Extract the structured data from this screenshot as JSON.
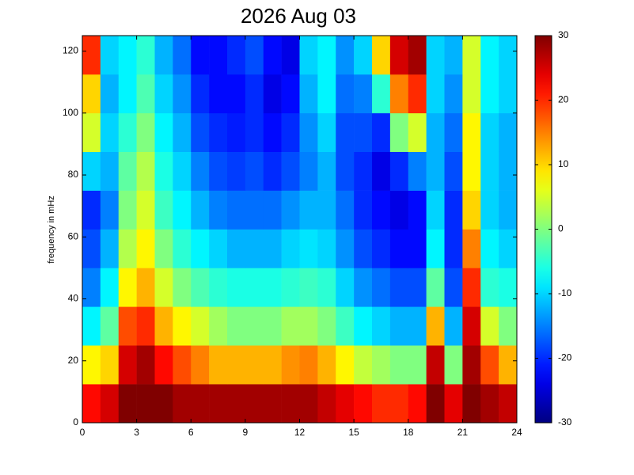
{
  "chart_data": {
    "type": "heatmap",
    "title": "2026 Aug 03",
    "y_label": "frequency in mHz",
    "xbins": [
      0,
      1,
      2,
      3,
      4,
      5,
      6,
      7,
      8,
      9,
      10,
      11,
      12,
      13,
      14,
      15,
      16,
      17,
      18,
      19,
      20,
      21,
      22,
      23,
      24
    ],
    "ybins": [
      0,
      12.5,
      25,
      37.5,
      50,
      62.5,
      75,
      87.5,
      100,
      112.5,
      125
    ],
    "values": [
      [
        22,
        25,
        30,
        30,
        30,
        28,
        28,
        28,
        28,
        28,
        28,
        28,
        28,
        26,
        24,
        22,
        20,
        20,
        22,
        30,
        24,
        30,
        28,
        26
      ],
      [
        8,
        10,
        25,
        28,
        22,
        18,
        15,
        12,
        12,
        12,
        12,
        14,
        15,
        12,
        8,
        4,
        2,
        0,
        0,
        26,
        0,
        28,
        18,
        12
      ],
      [
        -8,
        -2,
        18,
        20,
        12,
        8,
        5,
        2,
        0,
        0,
        0,
        2,
        2,
        0,
        -4,
        -8,
        -10,
        -12,
        -12,
        12,
        -12,
        25,
        5,
        0
      ],
      [
        -15,
        -8,
        8,
        12,
        5,
        0,
        -3,
        -5,
        -6,
        -6,
        -6,
        -5,
        -4,
        -5,
        -10,
        -14,
        -16,
        -18,
        -18,
        -2,
        -18,
        20,
        -5,
        -6
      ],
      [
        -18,
        -12,
        3,
        8,
        0,
        -5,
        -8,
        -10,
        -12,
        -12,
        -12,
        -10,
        -9,
        -10,
        -14,
        -18,
        -20,
        -22,
        -22,
        -8,
        -20,
        15,
        -8,
        -10
      ],
      [
        -20,
        -15,
        0,
        5,
        -4,
        -8,
        -12,
        -15,
        -16,
        -16,
        -16,
        -14,
        -12,
        -12,
        -16,
        -20,
        -22,
        -24,
        -22,
        -10,
        -20,
        10,
        -10,
        -12
      ],
      [
        -10,
        -12,
        -2,
        3,
        -6,
        -10,
        -15,
        -18,
        -19,
        -18,
        -20,
        -18,
        -15,
        -12,
        -18,
        -20,
        -24,
        -20,
        -15,
        -12,
        -18,
        8,
        -10,
        -12
      ],
      [
        5,
        -10,
        -5,
        0,
        -8,
        -12,
        -18,
        -20,
        -21,
        -20,
        -22,
        -20,
        -14,
        -10,
        -18,
        -18,
        -20,
        0,
        5,
        -12,
        -16,
        8,
        -10,
        -12
      ],
      [
        10,
        -12,
        -8,
        -3,
        -10,
        -14,
        -20,
        -22,
        -22,
        -20,
        -24,
        -22,
        -12,
        -8,
        -16,
        -15,
        -5,
        15,
        20,
        -10,
        -14,
        5,
        -8,
        -10
      ],
      [
        20,
        -10,
        -8,
        -5,
        -12,
        -16,
        -22,
        -22,
        -20,
        -18,
        -22,
        -24,
        -10,
        -8,
        -14,
        -10,
        10,
        25,
        28,
        -10,
        -12,
        5,
        -8,
        -10
      ]
    ],
    "xlim": [
      0,
      24
    ],
    "xticks": [
      0,
      3,
      6,
      9,
      12,
      15,
      18,
      21,
      24
    ],
    "ylim": [
      0,
      125
    ],
    "yticks": [
      0,
      20,
      40,
      60,
      80,
      100,
      120
    ],
    "clim": [
      -30,
      30
    ],
    "cticks": [
      -30,
      -20,
      -10,
      0,
      10,
      20,
      30
    ],
    "colormap": "jet"
  }
}
